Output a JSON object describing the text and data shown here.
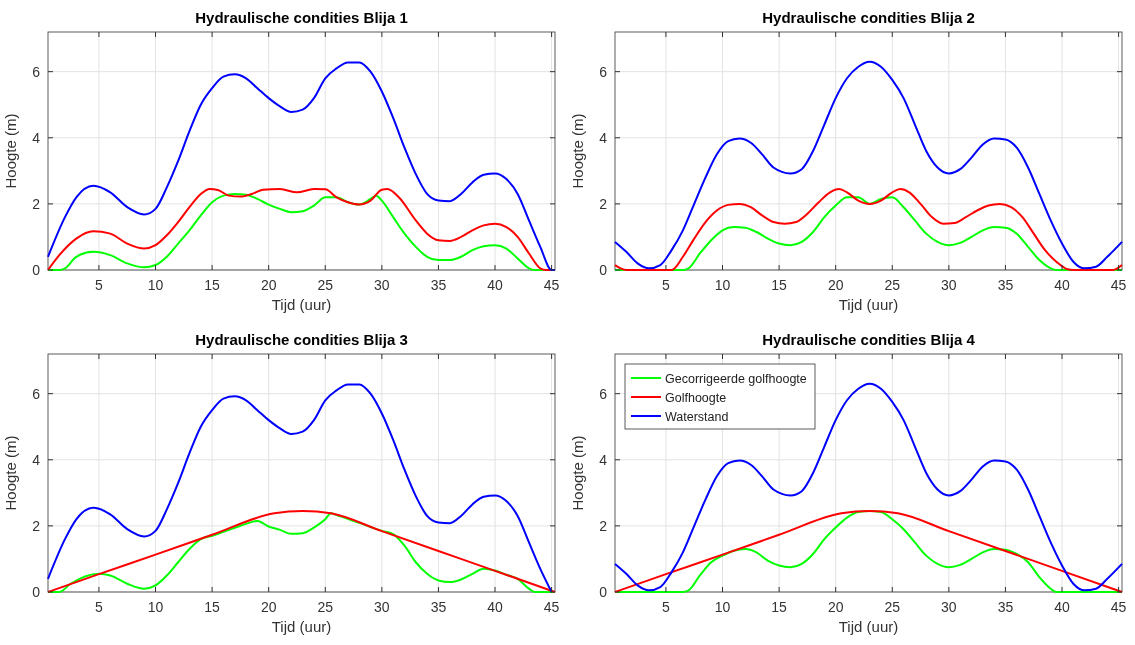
{
  "chart_data": [
    {
      "type": "line",
      "title": "Hydraulische condities Blija 1",
      "xlabel": "Tijd (uur)",
      "ylabel": "Hoogte (m)",
      "xlim": [
        0.5,
        45.3
      ],
      "xticks": [
        5,
        10,
        15,
        20,
        25,
        30,
        35,
        40,
        45
      ],
      "ylim": [
        0,
        7.2
      ],
      "yticks": [
        0,
        2,
        4,
        6
      ],
      "grid": true,
      "legend": false,
      "series": [
        {
          "color": "#00ff00",
          "x": [
            0.5,
            1.5,
            2,
            3,
            4.5,
            6,
            7.5,
            9,
            10,
            11,
            12,
            13,
            14,
            15,
            16,
            17,
            18,
            19,
            20,
            21,
            22,
            23,
            24,
            25,
            26,
            27,
            28,
            29,
            29.5,
            30,
            31,
            32,
            33,
            34,
            35,
            36,
            37,
            38,
            39,
            40,
            41,
            42,
            43,
            43.5,
            45.3
          ],
          "values": [
            0,
            0,
            0.05,
            0.4,
            0.55,
            0.45,
            0.2,
            0.08,
            0.15,
            0.4,
            0.8,
            1.2,
            1.65,
            2.05,
            2.25,
            2.3,
            2.28,
            2.15,
            1.98,
            1.85,
            1.75,
            1.78,
            1.95,
            2.2,
            2.2,
            2.05,
            1.98,
            2.15,
            2.25,
            2.1,
            1.6,
            1.1,
            0.7,
            0.4,
            0.3,
            0.3,
            0.4,
            0.6,
            0.72,
            0.75,
            0.65,
            0.35,
            0.05,
            0,
            0
          ]
        },
        {
          "color": "#ff0000",
          "x": [
            0.5,
            1.5,
            3,
            4.5,
            6,
            7.5,
            9,
            10,
            11,
            12,
            13,
            14,
            14.8,
            15.5,
            16.5,
            17.5,
            18.5,
            19.5,
            21,
            22.5,
            24,
            25,
            26,
            27,
            28,
            29,
            30,
            30.5,
            31.5,
            33,
            34,
            35,
            36,
            37,
            38,
            39,
            40,
            41,
            42,
            43,
            44,
            44.5,
            45.3
          ],
          "values": [
            0,
            0.45,
            0.95,
            1.17,
            1.1,
            0.8,
            0.65,
            0.75,
            1.05,
            1.45,
            1.9,
            2.3,
            2.45,
            2.42,
            2.25,
            2.22,
            2.3,
            2.43,
            2.45,
            2.35,
            2.45,
            2.44,
            2.2,
            2.05,
            1.98,
            2.1,
            2.43,
            2.45,
            2.2,
            1.5,
            1.1,
            0.9,
            0.88,
            1,
            1.2,
            1.35,
            1.4,
            1.3,
            1,
            0.5,
            0.05,
            0,
            0
          ]
        },
        {
          "color": "#0000ff",
          "x": [
            0.5,
            2,
            3,
            4.5,
            6,
            7.5,
            9,
            10,
            11,
            12,
            13,
            14,
            15,
            16,
            17,
            18,
            19,
            20,
            21,
            22,
            23,
            24,
            25,
            26,
            27,
            28,
            29,
            30,
            31,
            32,
            33,
            34,
            35,
            36,
            37,
            38,
            39,
            40,
            41,
            42,
            43,
            44,
            45,
            45.3
          ],
          "values": [
            0.4,
            1.6,
            2.2,
            2.55,
            2.35,
            1.9,
            1.68,
            1.85,
            2.5,
            3.3,
            4.2,
            5,
            5.5,
            5.85,
            5.92,
            5.8,
            5.5,
            5.2,
            4.95,
            4.78,
            4.85,
            5.2,
            5.8,
            6.1,
            6.28,
            6.28,
            6,
            5.4,
            4.6,
            3.7,
            2.9,
            2.3,
            2.1,
            2.08,
            2.3,
            2.65,
            2.88,
            2.92,
            2.75,
            2.3,
            1.5,
            0.7,
            0,
            0
          ]
        }
      ]
    },
    {
      "type": "line",
      "title": "Hydraulische condities Blija 2",
      "xlabel": "Tijd (uur)",
      "ylabel": "Hoogte (m)",
      "xlim": [
        0.5,
        45.3
      ],
      "xticks": [
        5,
        10,
        15,
        20,
        25,
        30,
        35,
        40,
        45
      ],
      "ylim": [
        0,
        7.2
      ],
      "yticks": [
        0,
        2,
        4,
        6
      ],
      "grid": true,
      "legend": false,
      "series": [
        {
          "color": "#00ff00",
          "x": [
            0.5,
            6.5,
            7,
            8,
            9,
            10,
            11,
            12,
            13,
            14,
            15,
            16,
            17,
            18,
            19,
            20,
            21,
            22,
            23,
            24,
            25,
            26,
            27,
            28,
            29,
            30,
            31,
            32,
            33,
            34,
            35,
            36,
            37,
            38,
            39,
            39.5,
            45.3
          ],
          "values": [
            0,
            0,
            0.05,
            0.5,
            0.9,
            1.2,
            1.3,
            1.28,
            1.15,
            0.95,
            0.8,
            0.75,
            0.85,
            1.15,
            1.6,
            1.95,
            2.2,
            2.2,
            2,
            2.15,
            2.2,
            1.9,
            1.5,
            1.1,
            0.85,
            0.75,
            0.82,
            1,
            1.2,
            1.3,
            1.28,
            1.1,
            0.7,
            0.3,
            0.05,
            0,
            0
          ]
        },
        {
          "color": "#ff0000",
          "x": [
            0.5,
            1,
            1.5,
            5.5,
            6.5,
            7.5,
            8.5,
            9.5,
            10.5,
            11.5,
            12.5,
            13.5,
            14.5,
            15.5,
            16.5,
            17.5,
            18.5,
            19.5,
            20.3,
            21,
            22,
            23,
            24,
            25,
            25.7,
            26.5,
            27.5,
            28.5,
            29.5,
            30.5,
            31.5,
            32.5,
            33.5,
            34.5,
            35.5,
            36.5,
            37.5,
            38.5,
            39.5,
            40.5,
            41,
            44.5,
            45.3
          ],
          "values": [
            0.15,
            0.05,
            0,
            0,
            0.4,
            0.95,
            1.45,
            1.8,
            1.97,
            2,
            1.9,
            1.65,
            1.45,
            1.4,
            1.45,
            1.7,
            2.05,
            2.35,
            2.45,
            2.35,
            2.1,
            2,
            2.1,
            2.35,
            2.45,
            2.35,
            2,
            1.6,
            1.4,
            1.42,
            1.6,
            1.8,
            1.95,
            2,
            1.9,
            1.6,
            1.1,
            0.6,
            0.25,
            0.02,
            0,
            0,
            0.15
          ]
        },
        {
          "color": "#0000ff",
          "x": [
            0.5,
            1.5,
            2.5,
            3.5,
            4.5,
            5.5,
            6.5,
            7.5,
            8.5,
            9.5,
            10.5,
            11.5,
            12.5,
            13.5,
            14.5,
            16,
            17,
            18,
            19,
            20,
            21,
            22,
            23,
            24,
            25,
            26,
            27,
            28,
            29,
            30,
            31,
            32,
            33,
            34,
            35,
            36,
            37,
            38,
            39,
            40,
            41,
            42,
            43,
            44,
            45.3
          ],
          "values": [
            0.85,
            0.55,
            0.2,
            0.05,
            0.15,
            0.6,
            1.2,
            2,
            2.8,
            3.5,
            3.9,
            3.98,
            3.85,
            3.5,
            3.1,
            2.92,
            3.05,
            3.6,
            4.4,
            5.2,
            5.8,
            6.15,
            6.3,
            6.15,
            5.75,
            5.2,
            4.4,
            3.6,
            3.1,
            2.92,
            3.05,
            3.4,
            3.8,
            3.98,
            3.95,
            3.7,
            3.1,
            2.3,
            1.5,
            0.8,
            0.25,
            0.05,
            0.1,
            0.4,
            0.85
          ]
        }
      ]
    },
    {
      "type": "line",
      "title": "Hydraulische condities Blija 3",
      "xlabel": "Tijd (uur)",
      "ylabel": "Hoogte (m)",
      "xlim": [
        0.5,
        45.3
      ],
      "xticks": [
        5,
        10,
        15,
        20,
        25,
        30,
        35,
        40,
        45
      ],
      "ylim": [
        0,
        7.2
      ],
      "yticks": [
        0,
        2,
        4,
        6
      ],
      "grid": true,
      "legend": false,
      "series": [
        {
          "color": "#00ff00",
          "x": [
            0.5,
            1.5,
            2.5,
            5,
            6,
            7.5,
            9,
            10,
            11,
            12,
            13,
            14,
            15,
            16,
            17,
            18,
            19,
            20,
            21,
            22,
            23,
            24,
            25,
            25.5,
            26,
            28,
            30,
            31,
            32,
            33,
            34,
            35,
            36,
            37,
            38,
            39,
            40,
            41,
            42,
            43,
            43.5,
            45.3
          ],
          "values": [
            0,
            0,
            0.25,
            0.55,
            0.5,
            0.25,
            0.1,
            0.2,
            0.5,
            0.9,
            1.3,
            1.6,
            1.7,
            1.82,
            1.94,
            2.06,
            2.15,
            1.98,
            1.88,
            1.76,
            1.78,
            1.95,
            2.2,
            2.38,
            2.33,
            2.09,
            1.85,
            1.75,
            1.4,
            0.9,
            0.55,
            0.35,
            0.3,
            0.38,
            0.55,
            0.7,
            0.65,
            0.52,
            0.4,
            0.1,
            0,
            0
          ]
        },
        {
          "color": "#ff0000",
          "x": [
            0.5,
            5,
            10,
            15,
            20.5,
            23,
            25.5,
            30,
            35,
            40,
            45.3
          ],
          "values": [
            0,
            0.54,
            1.13,
            1.73,
            2.38,
            2.45,
            2.38,
            1.84,
            1.24,
            0.64,
            0
          ]
        },
        {
          "color": "#0000ff",
          "x": [
            0.5,
            2,
            3,
            4.5,
            6,
            7.5,
            9,
            10,
            11,
            12,
            13,
            14,
            15,
            16,
            17,
            18,
            19,
            20,
            21,
            22,
            23,
            24,
            25,
            26,
            27,
            28,
            29,
            30,
            31,
            32,
            33,
            34,
            35,
            36,
            37,
            38,
            39,
            40,
            41,
            42,
            43,
            44,
            45
          ],
          "values": [
            0.4,
            1.6,
            2.2,
            2.55,
            2.35,
            1.9,
            1.68,
            1.85,
            2.5,
            3.3,
            4.2,
            5,
            5.5,
            5.85,
            5.92,
            5.8,
            5.5,
            5.2,
            4.95,
            4.78,
            4.85,
            5.2,
            5.8,
            6.1,
            6.28,
            6.28,
            6,
            5.4,
            4.6,
            3.7,
            2.9,
            2.3,
            2.1,
            2.08,
            2.3,
            2.65,
            2.88,
            2.92,
            2.75,
            2.3,
            1.5,
            0.7,
            0
          ]
        }
      ]
    },
    {
      "type": "line",
      "title": "Hydraulische condities Blija 4",
      "xlabel": "Tijd (uur)",
      "ylabel": "Hoogte (m)",
      "xlim": [
        0.5,
        45.3
      ],
      "xticks": [
        5,
        10,
        15,
        20,
        25,
        30,
        35,
        40,
        45
      ],
      "ylim": [
        0,
        7.2
      ],
      "yticks": [
        0,
        2,
        4,
        6
      ],
      "grid": true,
      "legend": "top left",
      "series": [
        {
          "name": "Gecorrigeerde golfhoogte",
          "color": "#00ff00",
          "x": [
            0.5,
            6.5,
            7,
            8,
            9,
            10,
            11,
            12,
            13,
            14,
            15,
            16,
            17,
            18,
            19,
            20,
            21,
            22,
            23,
            24,
            25,
            26,
            27,
            28,
            29,
            30,
            31,
            32,
            33,
            34,
            35,
            36,
            37,
            38,
            39,
            39.5,
            45.3
          ],
          "values": [
            0,
            0,
            0.05,
            0.5,
            0.9,
            1.1,
            1.25,
            1.3,
            1.2,
            0.95,
            0.8,
            0.75,
            0.85,
            1.15,
            1.6,
            1.95,
            2.25,
            2.42,
            2.45,
            2.42,
            2.2,
            1.9,
            1.5,
            1.1,
            0.85,
            0.75,
            0.82,
            1,
            1.2,
            1.3,
            1.28,
            1.15,
            0.9,
            0.45,
            0.1,
            0,
            0
          ]
        },
        {
          "name": "Golfhoogte",
          "color": "#ff0000",
          "x": [
            0.5,
            5,
            10,
            15,
            20.5,
            23,
            25.5,
            30,
            35,
            40,
            45.3
          ],
          "values": [
            0,
            0.54,
            1.13,
            1.73,
            2.38,
            2.45,
            2.38,
            1.84,
            1.24,
            0.64,
            0
          ]
        },
        {
          "name": "Waterstand",
          "color": "#0000ff",
          "x": [
            0.5,
            1.5,
            2.5,
            3.5,
            4.5,
            5.5,
            6.5,
            7.5,
            8.5,
            9.5,
            10.5,
            11.5,
            12.5,
            13.5,
            14.5,
            16,
            17,
            18,
            19,
            20,
            21,
            22,
            23,
            24,
            25,
            26,
            27,
            28,
            29,
            30,
            31,
            32,
            33,
            34,
            35,
            36,
            37,
            38,
            39,
            40,
            41,
            42,
            43,
            44,
            45.3
          ],
          "values": [
            0.85,
            0.55,
            0.2,
            0.05,
            0.15,
            0.6,
            1.2,
            2,
            2.8,
            3.5,
            3.9,
            3.98,
            3.85,
            3.5,
            3.1,
            2.92,
            3.05,
            3.6,
            4.4,
            5.2,
            5.8,
            6.15,
            6.3,
            6.15,
            5.75,
            5.2,
            4.4,
            3.6,
            3.1,
            2.92,
            3.05,
            3.4,
            3.8,
            3.98,
            3.95,
            3.7,
            3.1,
            2.3,
            1.5,
            0.8,
            0.25,
            0.05,
            0.1,
            0.4,
            0.85
          ]
        }
      ]
    }
  ]
}
